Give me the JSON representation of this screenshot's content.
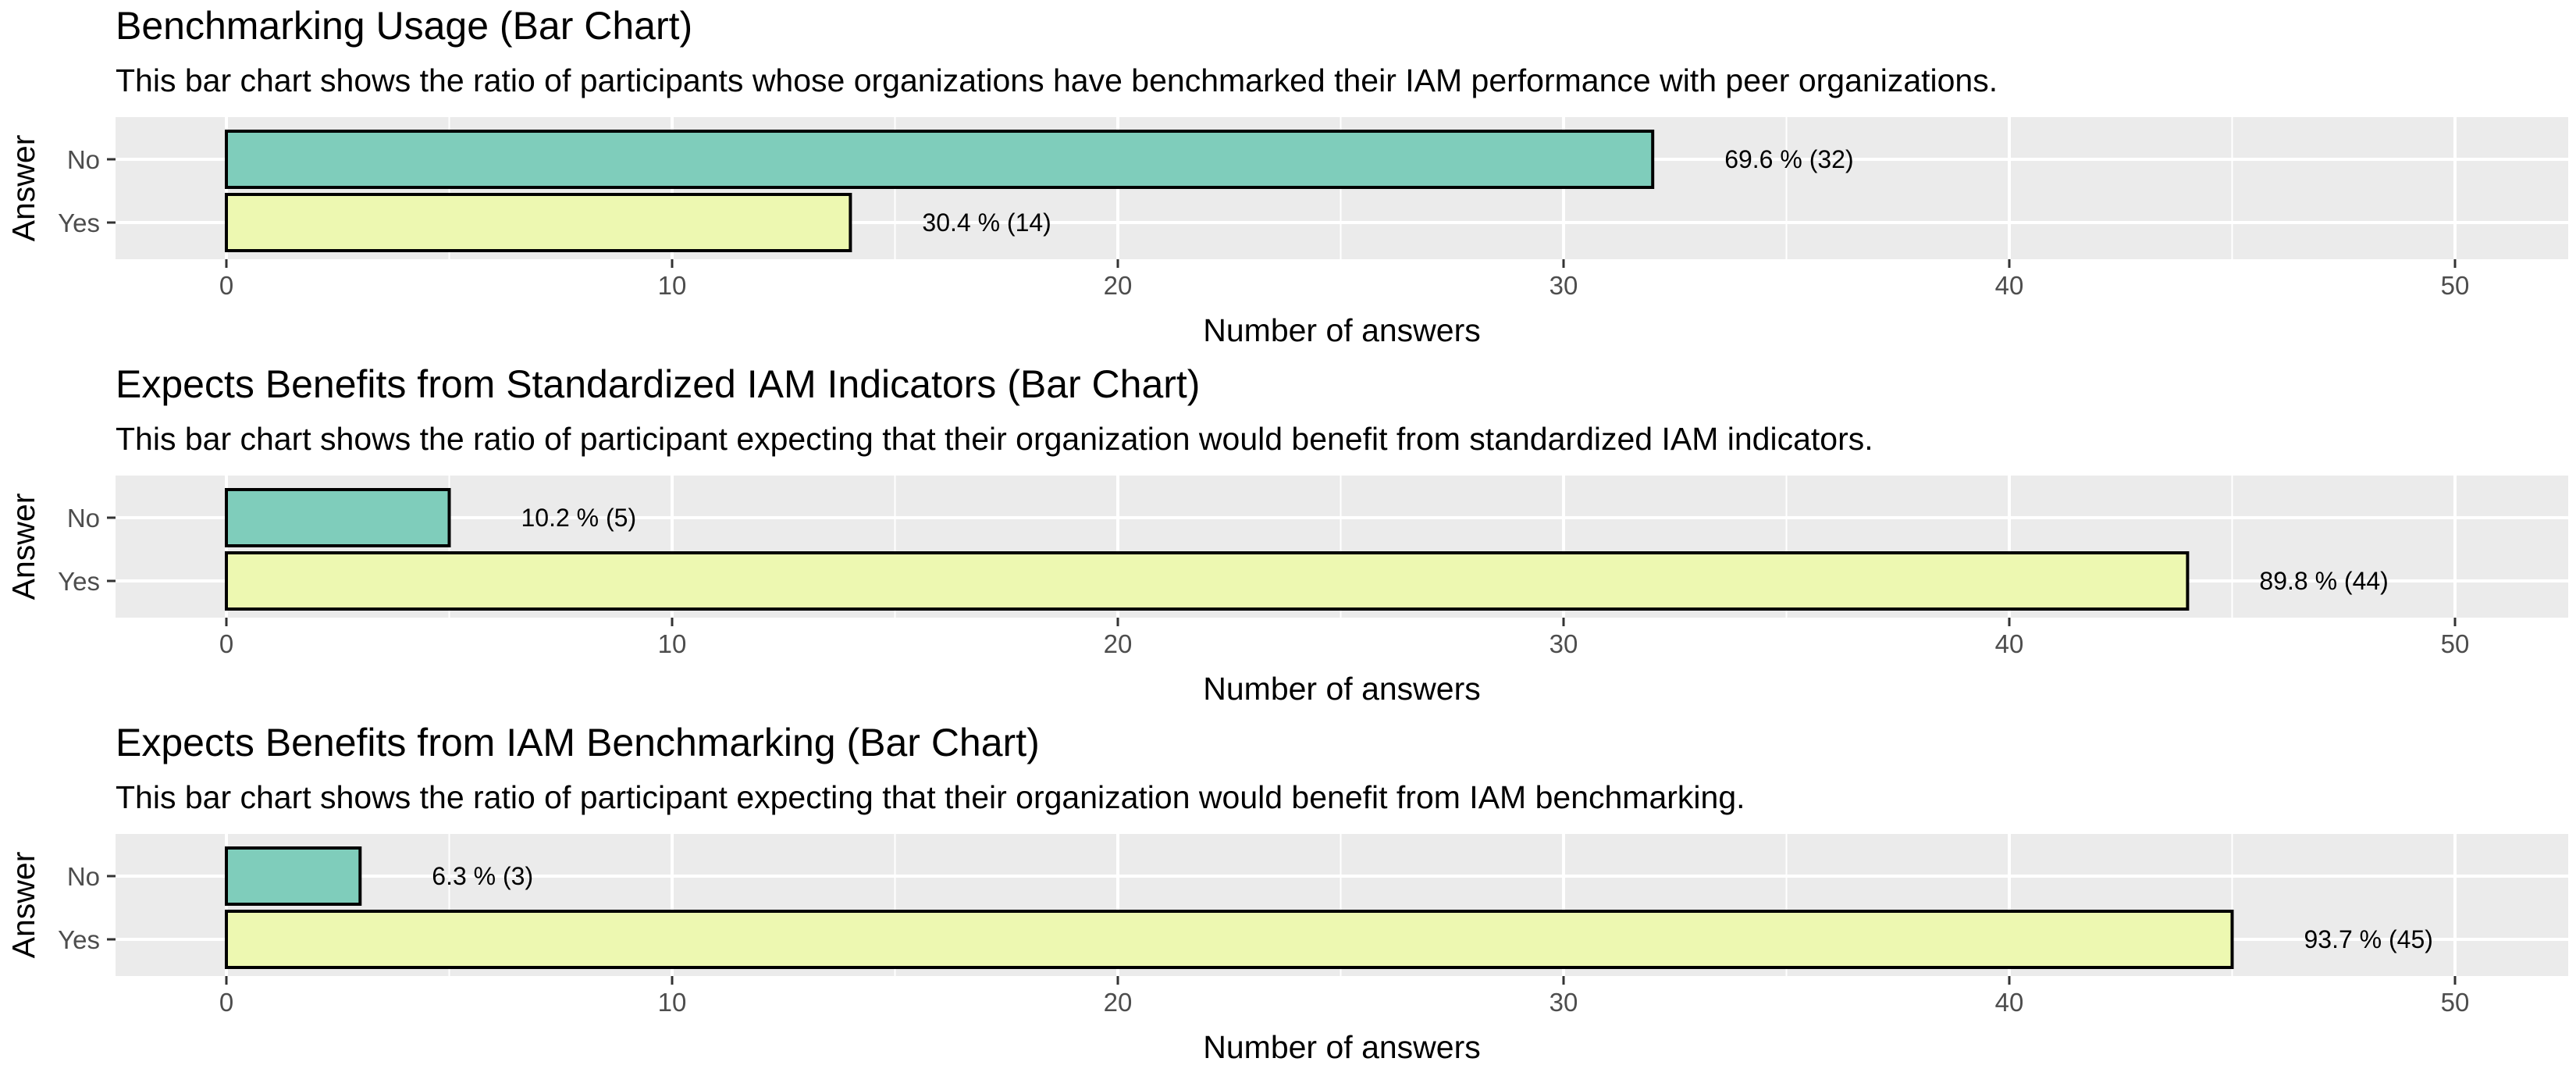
{
  "colors": {
    "no": "#7fcdbb",
    "yes": "#edf8b1",
    "panel": "#ebebeb",
    "grid": "#ffffff",
    "outline": "#000000"
  },
  "chart_data": [
    {
      "type": "bar",
      "orientation": "horizontal",
      "title": "Benchmarking Usage (Bar Chart)",
      "subtitle": "This bar chart shows the ratio of participants whose organizations have benchmarked their IAM performance with peer organizations.",
      "xlabel": "Number of answers",
      "ylabel": "Answer",
      "xlim": [
        0,
        50
      ],
      "xticks": [
        0,
        10,
        20,
        30,
        40,
        50
      ],
      "categories": [
        "No",
        "Yes"
      ],
      "values": [
        32,
        14
      ],
      "labels": [
        "69.6 % (32)",
        "30.4 % (14)"
      ],
      "grid": true,
      "legend": "none"
    },
    {
      "type": "bar",
      "orientation": "horizontal",
      "title": "Expects Benefits from Standardized IAM Indicators (Bar Chart)",
      "subtitle": "This bar chart shows the ratio of participant expecting that their organization would benefit from standardized IAM indicators.",
      "xlabel": "Number of answers",
      "ylabel": "Answer",
      "xlim": [
        0,
        50
      ],
      "xticks": [
        0,
        10,
        20,
        30,
        40,
        50
      ],
      "categories": [
        "No",
        "Yes"
      ],
      "values": [
        5,
        44
      ],
      "labels": [
        "10.2 % (5)",
        "89.8 % (44)"
      ],
      "grid": true,
      "legend": "none"
    },
    {
      "type": "bar",
      "orientation": "horizontal",
      "title": "Expects Benefits from IAM Benchmarking (Bar Chart)",
      "subtitle": "This bar chart shows the ratio of participant expecting that their organization would benefit from IAM benchmarking.",
      "xlabel": "Number of answers",
      "ylabel": "Answer",
      "xlim": [
        0,
        50
      ],
      "xticks": [
        0,
        10,
        20,
        30,
        40,
        50
      ],
      "categories": [
        "No",
        "Yes"
      ],
      "values": [
        3,
        45
      ],
      "labels": [
        "6.3 % (3)",
        "93.7 % (45)"
      ],
      "grid": true,
      "legend": "none"
    }
  ]
}
